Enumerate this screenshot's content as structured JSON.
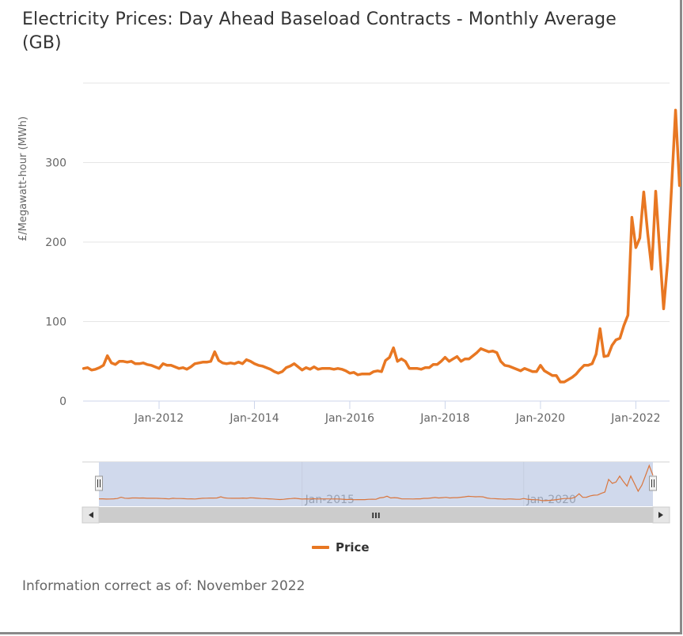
{
  "title": "Electricity Prices: Day Ahead Baseload Contracts - Monthly Average (GB)",
  "footnote": "Information correct as of: November 2022",
  "legend": {
    "label": "Price",
    "color": "#e87722"
  },
  "navigator": {
    "labels": [
      "Jan-2015",
      "Jan-2020"
    ],
    "scroll_grip": "III",
    "handle_glyph": "||",
    "selection_fill": "#d0d9ec"
  },
  "chart_data": {
    "type": "line",
    "title": "Electricity Prices: Day Ahead Baseload Contracts - Monthly Average (GB)",
    "xlabel": "",
    "ylabel": "£/Megawatt-hour (MWh)",
    "ylim": [
      0,
      400
    ],
    "yticks": [
      0,
      100,
      200,
      300
    ],
    "xtick_labels": [
      "Jan-2012",
      "Jan-2014",
      "Jan-2016",
      "Jan-2018",
      "Jan-2020",
      "Jan-2022"
    ],
    "grid": true,
    "legend_position": "bottom-center",
    "x_start": "Jun-2010",
    "x_step": "month",
    "series": [
      {
        "name": "Price",
        "color": "#e87722",
        "values": [
          41,
          42,
          39,
          40,
          42,
          45,
          57,
          48,
          46,
          50,
          50,
          49,
          50,
          47,
          47,
          48,
          46,
          45,
          43,
          41,
          47,
          45,
          45,
          43,
          41,
          42,
          40,
          43,
          47,
          48,
          49,
          49,
          50,
          62,
          51,
          48,
          47,
          48,
          47,
          49,
          47,
          52,
          50,
          47,
          45,
          44,
          42,
          40,
          37,
          35,
          37,
          42,
          44,
          47,
          43,
          39,
          42,
          40,
          43,
          40,
          41,
          41,
          41,
          40,
          41,
          40,
          38,
          35,
          36,
          33,
          34,
          34,
          34,
          37,
          38,
          37,
          51,
          55,
          67,
          50,
          53,
          50,
          41,
          41,
          41,
          40,
          42,
          42,
          46,
          46,
          50,
          55,
          50,
          53,
          56,
          50,
          53,
          53,
          57,
          61,
          66,
          64,
          62,
          63,
          61,
          50,
          45,
          44,
          42,
          40,
          38,
          41,
          39,
          37,
          37,
          45,
          38,
          35,
          32,
          32,
          24,
          24,
          27,
          30,
          34,
          40,
          45,
          45,
          47,
          59,
          91,
          56,
          57,
          70,
          77,
          79,
          95,
          108,
          231,
          193,
          205,
          263,
          210,
          166,
          264,
          190,
          116,
          175,
          270,
          366,
          271
        ]
      }
    ]
  }
}
